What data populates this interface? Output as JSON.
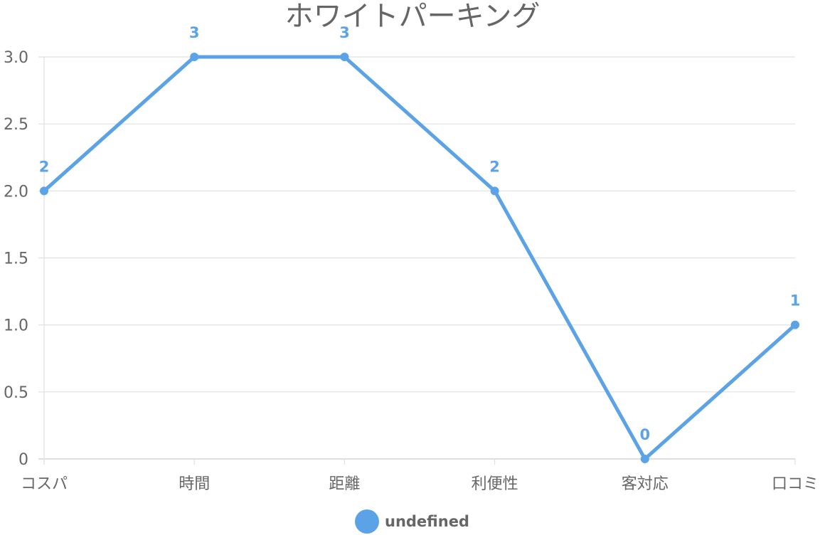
{
  "chart_data": {
    "type": "line",
    "title": "ホワイトパーキング",
    "categories": [
      "コスパ",
      "時間",
      "距離",
      "利便性",
      "客対応",
      "口コミ"
    ],
    "series": [
      {
        "name": "undefined",
        "values": [
          2,
          3,
          3,
          2,
          0,
          1
        ]
      }
    ],
    "ylim": [
      0,
      3
    ],
    "yticks": [
      "0",
      "0.5",
      "1.0",
      "1.5",
      "2.0",
      "2.5",
      "3.0"
    ],
    "data_labels": [
      "2",
      "3",
      "3",
      "2",
      "0",
      "1"
    ],
    "grid": true,
    "legend": "bottom",
    "colors": {
      "series": "#5ba3e6",
      "grid": "#e0e0e0",
      "axis": "#cccccc",
      "text": "#666666"
    }
  }
}
